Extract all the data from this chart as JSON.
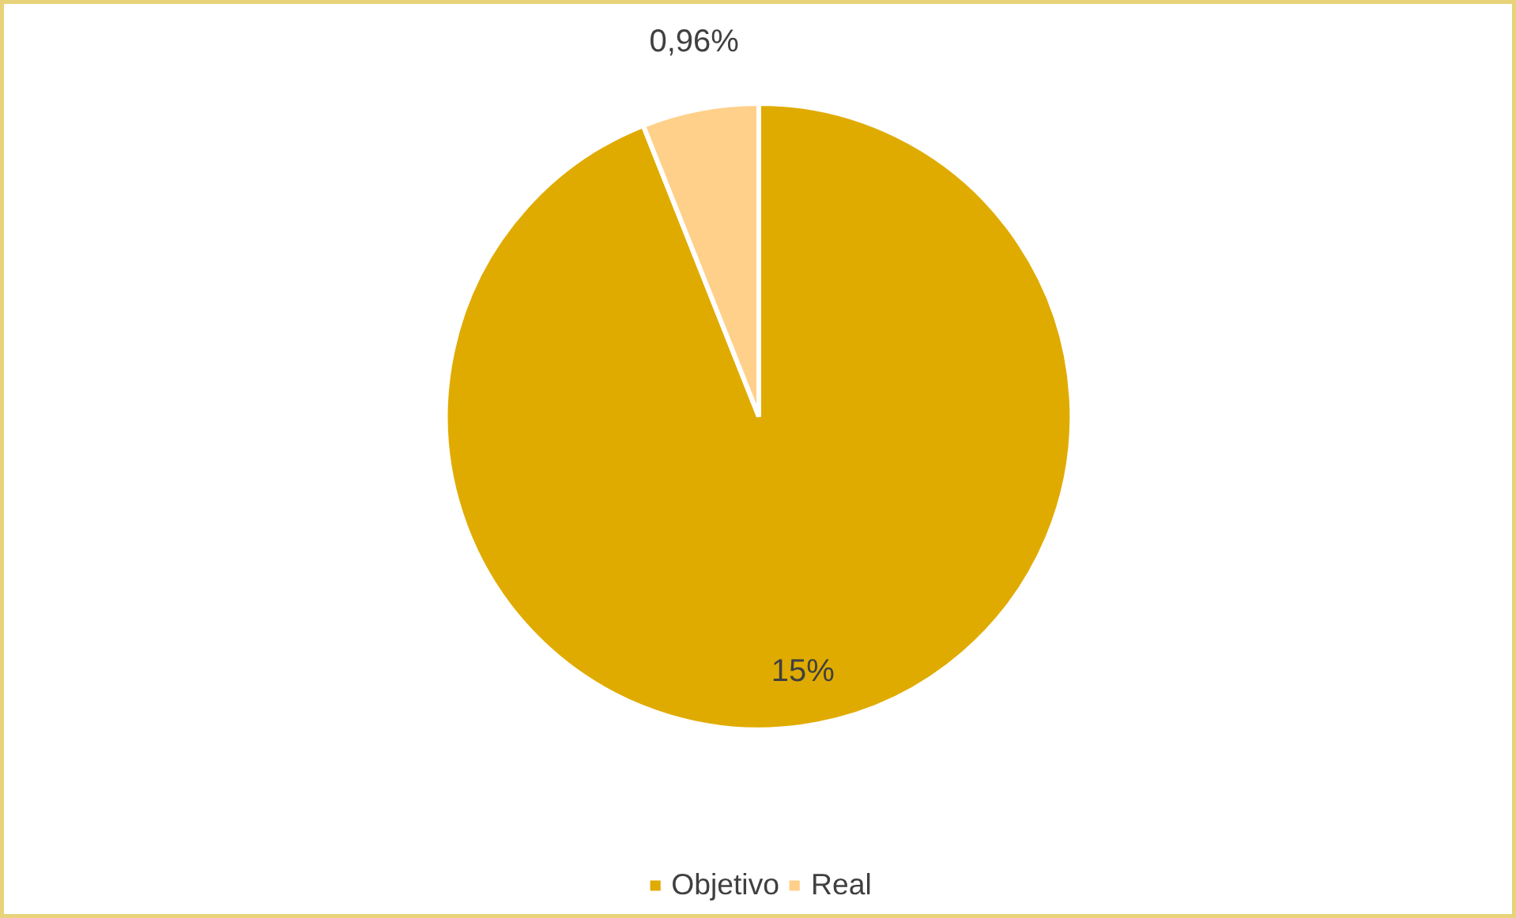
{
  "chart_data": {
    "type": "pie",
    "categories": [
      "Objetivo",
      "Real"
    ],
    "values": [
      15,
      0.96
    ],
    "colors": [
      "#e0ab00",
      "#ffd08a"
    ],
    "value_labels": [
      "15%",
      "0,96%"
    ],
    "legend": "bottom"
  }
}
